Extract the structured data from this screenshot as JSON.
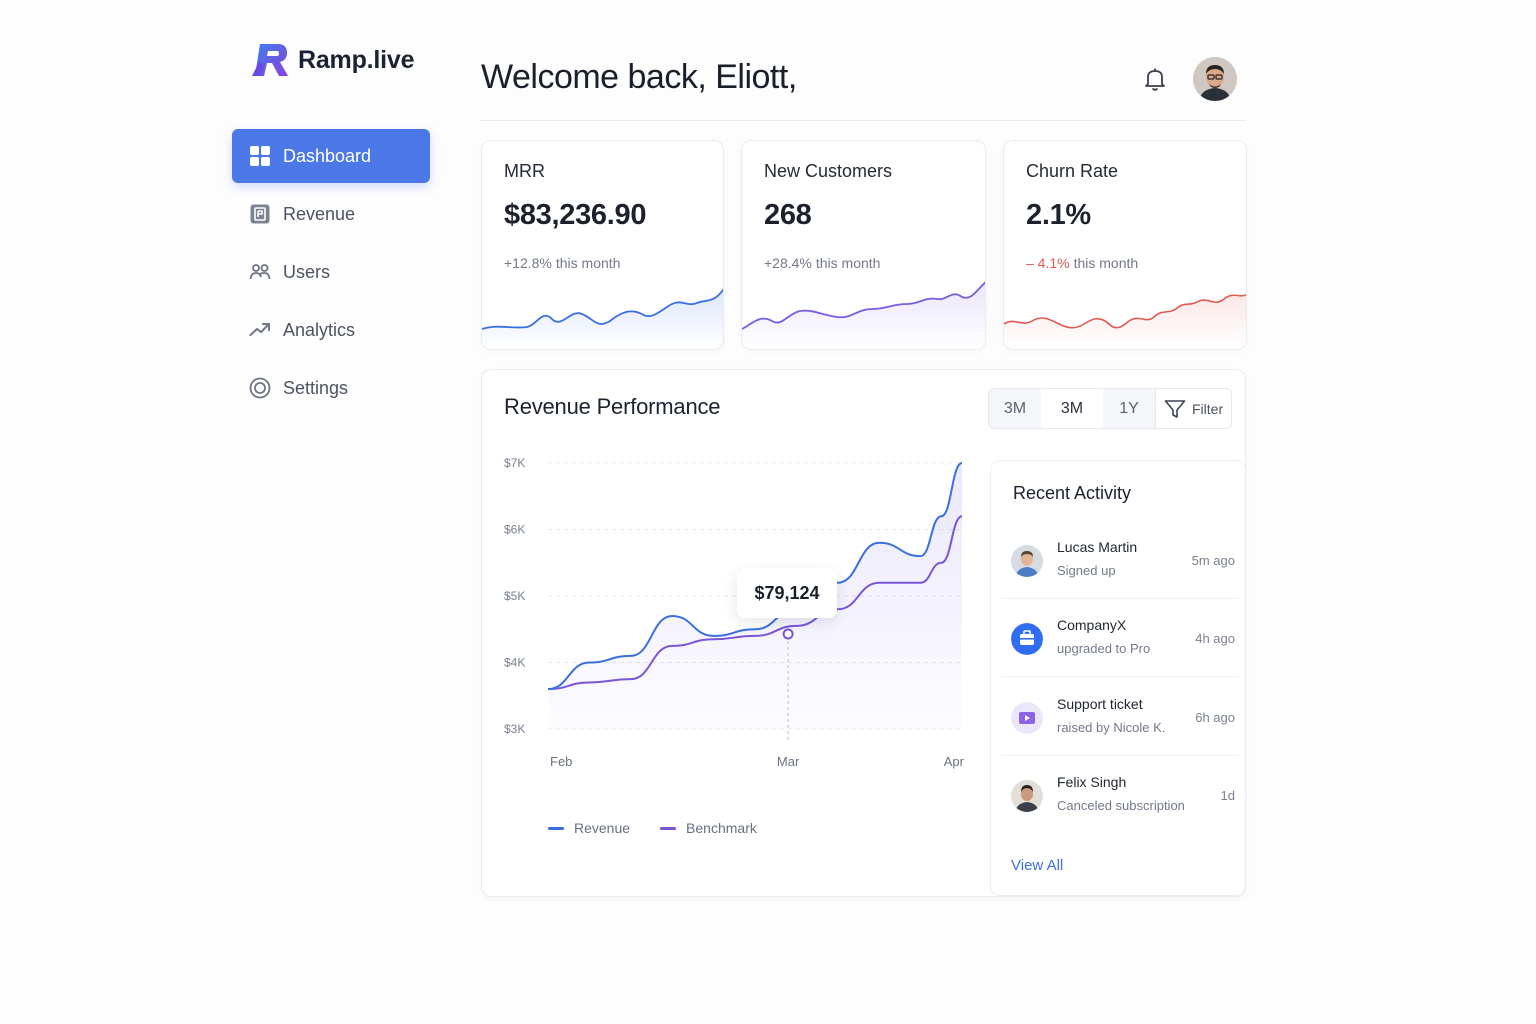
{
  "brand": {
    "name": "Ramp.live"
  },
  "sidebar": {
    "items": [
      {
        "label": "Dashboard",
        "icon": "grid-icon",
        "active": true
      },
      {
        "label": "Revenue",
        "icon": "receipt-icon",
        "active": false
      },
      {
        "label": "Users",
        "icon": "users-icon",
        "active": false
      },
      {
        "label": "Analytics",
        "icon": "trend-up-icon",
        "active": false
      },
      {
        "label": "Settings",
        "icon": "settings-icon",
        "active": false
      }
    ]
  },
  "header": {
    "welcome": "Welcome back, Eliott,"
  },
  "kpis": [
    {
      "label": "MRR",
      "value": "$83,236.90",
      "change": "+12.8%",
      "period": "this month",
      "trend": "up",
      "color": "#3b6fe0"
    },
    {
      "label": "New Customers",
      "value": "268",
      "change": "+28.4%",
      "period": "this month",
      "trend": "up",
      "color": "#7a5ce0"
    },
    {
      "label": "Churn Rate",
      "value": "2.1%",
      "change": "– 4.1%",
      "period": "this month",
      "trend": "down",
      "color": "#e05a52"
    }
  ],
  "performance": {
    "title": "Revenue Performance",
    "ranges": [
      "3M",
      "3M",
      "1Y"
    ],
    "selected_range": 1,
    "filter_label": "Filter",
    "tooltip": "$79,124",
    "legend": [
      {
        "name": "Revenue",
        "color": "#3b6fe0"
      },
      {
        "name": "Benchmark",
        "color": "#7a55d6"
      }
    ]
  },
  "chart_data": {
    "type": "line",
    "title": "Revenue Performance",
    "xlabel": "",
    "ylabel": "",
    "x_ticks": [
      "Feb",
      "Mar",
      "Apr"
    ],
    "y_ticks": [
      "$3K",
      "$4K",
      "$5K",
      "$6K",
      "$7K"
    ],
    "ylim": [
      3000,
      7000
    ],
    "x": [
      0,
      0.1,
      0.2,
      0.3,
      0.4,
      0.5,
      0.6,
      0.7,
      0.8,
      0.9,
      0.95,
      1.0
    ],
    "series": [
      {
        "name": "Revenue",
        "values": [
          3600,
          4000,
          4100,
          4700,
          4400,
          4500,
          4800,
          5200,
          5800,
          5600,
          6200,
          7000
        ]
      },
      {
        "name": "Benchmark",
        "values": [
          3600,
          3700,
          3750,
          4250,
          4350,
          4400,
          4550,
          4800,
          5200,
          5200,
          5500,
          6200
        ]
      }
    ],
    "highlight": {
      "x": 0.58,
      "label": "$79,124"
    },
    "grid": true,
    "legend_position": "bottom-left"
  },
  "activity": {
    "title": "Recent Activity",
    "items": [
      {
        "name": "Lucas Martin",
        "sub": "Signed up",
        "time": "5m ago",
        "avatar": "person-avatar"
      },
      {
        "name": "CompanyX",
        "sub": "upgraded to Pro",
        "time": "4h ago",
        "avatar": "company-icon"
      },
      {
        "name": "Support ticket",
        "sub": "raised by Nicole K.",
        "time": "6h ago",
        "avatar": "ticket-icon"
      },
      {
        "name": "Felix Singh",
        "sub": "Canceled subscription",
        "time": "1d",
        "avatar": "person-avatar"
      }
    ],
    "view_all": "View All"
  }
}
